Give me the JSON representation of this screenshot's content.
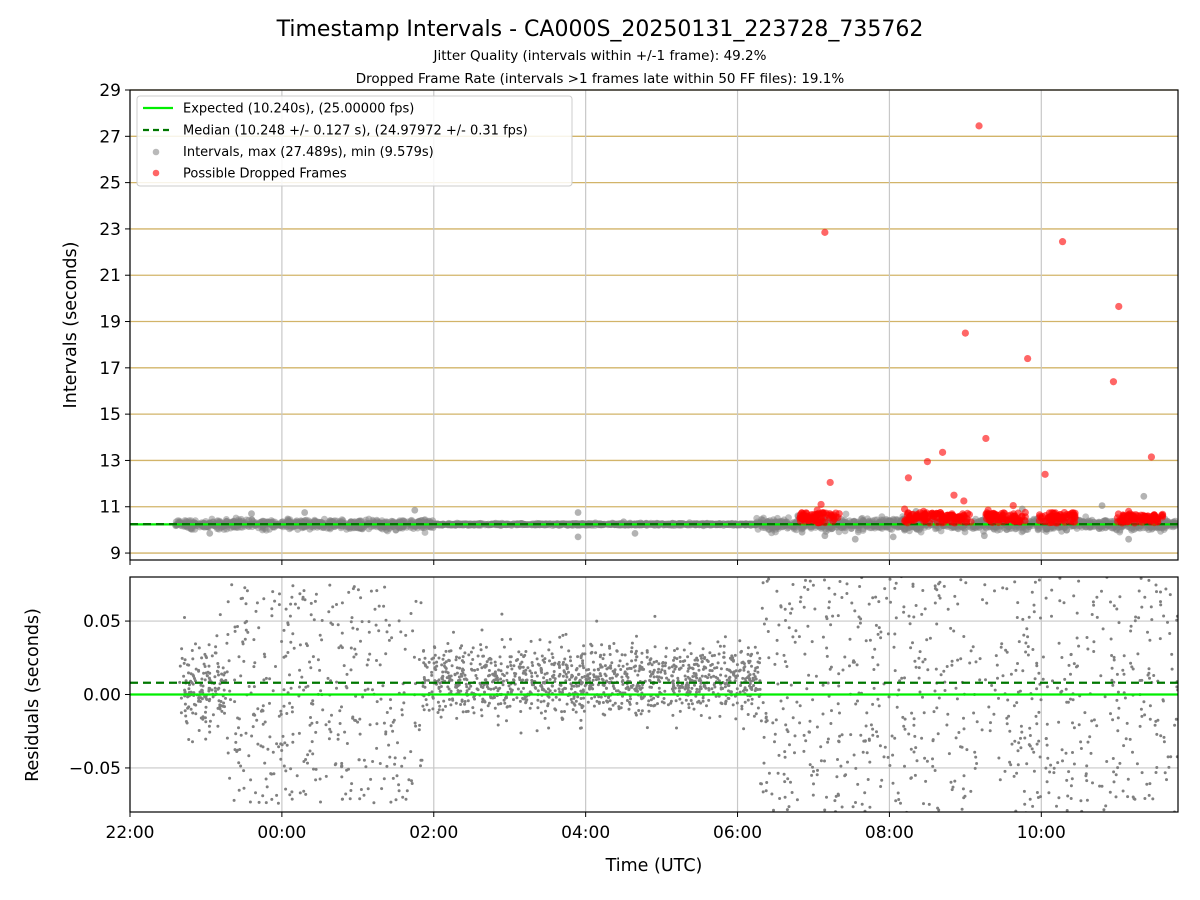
{
  "title": "Timestamp Intervals - CA000S_20250131_223728_735762",
  "subtitle_jitter": "Jitter Quality (intervals within +/-1 frame): 49.2%",
  "subtitle_dropped": "Dropped Frame Rate (intervals >1 frames late within 50 FF files): 19.1%",
  "colors": {
    "expected": "#00ee00",
    "median": "#007700",
    "intervals": "#808080",
    "dropped": "#ff0000",
    "hgrid_top": "#d2b469",
    "grid": "#c8c8c8"
  },
  "chart_data": [
    {
      "type": "scatter",
      "panel": "top",
      "ylabel": "Intervals (seconds)",
      "xlabel": "",
      "x_unit": "hours UTC",
      "xlim": [
        22.0,
        35.8
      ],
      "ylim": [
        8.7,
        29.0
      ],
      "yticks": [
        "9",
        "11",
        "13",
        "15",
        "17",
        "19",
        "21",
        "23",
        "25",
        "27",
        "29"
      ],
      "grid": true,
      "legend_position": "upper-left",
      "legend": [
        {
          "label": "Expected (10.240s), (25.00000 fps)",
          "style": "solid-line"
        },
        {
          "label": "Median (10.248 +/- 0.127 s), (24.97972 +/- 0.31 fps)",
          "style": "dashed-line"
        },
        {
          "label": "Intervals, max (27.489s), min (9.579s)",
          "style": "gray-dot"
        },
        {
          "label": "Possible Dropped Frames",
          "style": "red-dot"
        }
      ],
      "expected_interval": 10.24,
      "median_interval": 10.248,
      "intervals_max": 27.489,
      "intervals_min": 9.579,
      "interval_clusters": [
        {
          "x_range": [
            22.6,
            26.0
          ],
          "center": 10.24,
          "spread": 0.22
        },
        {
          "x_range": [
            26.0,
            30.25
          ],
          "center": 10.24,
          "spread": 0.05
        },
        {
          "x_range": [
            30.25,
            35.8
          ],
          "center": 10.24,
          "spread": 0.28
        }
      ],
      "interval_outliers": [
        [
          23.05,
          9.85
        ],
        [
          23.6,
          10.7
        ],
        [
          24.3,
          10.75
        ],
        [
          25.75,
          10.85
        ],
        [
          27.9,
          10.75
        ],
        [
          27.9,
          9.7
        ],
        [
          28.5,
          10.35
        ],
        [
          28.65,
          9.85
        ],
        [
          30.85,
          9.9
        ],
        [
          31.15,
          9.75
        ],
        [
          31.55,
          9.6
        ],
        [
          32.05,
          9.7
        ],
        [
          32.35,
          10.8
        ],
        [
          33.75,
          10.9
        ],
        [
          34.8,
          11.05
        ],
        [
          35.35,
          11.45
        ],
        [
          35.15,
          9.6
        ],
        [
          33.25,
          9.75
        ]
      ],
      "dropped_frames_main": [
        {
          "x_range": [
            30.8,
            31.35
          ],
          "y_range": [
            10.3,
            10.75
          ]
        },
        {
          "x_range": [
            32.2,
            33.1
          ],
          "y_range": [
            10.3,
            10.75
          ]
        },
        {
          "x_range": [
            33.25,
            33.8
          ],
          "y_range": [
            10.3,
            10.75
          ]
        },
        {
          "x_range": [
            33.95,
            34.45
          ],
          "y_range": [
            10.3,
            10.75
          ]
        },
        {
          "x_range": [
            35.0,
            35.6
          ],
          "y_range": [
            10.3,
            10.7
          ]
        }
      ],
      "dropped_frames_outliers": [
        [
          31.15,
          22.85
        ],
        [
          31.22,
          12.05
        ],
        [
          31.1,
          11.1
        ],
        [
          32.25,
          12.25
        ],
        [
          32.5,
          12.95
        ],
        [
          32.7,
          13.35
        ],
        [
          32.85,
          11.5
        ],
        [
          32.98,
          11.25
        ],
        [
          33.0,
          18.5
        ],
        [
          33.18,
          27.45
        ],
        [
          33.27,
          13.95
        ],
        [
          33.63,
          11.05
        ],
        [
          33.82,
          17.4
        ],
        [
          34.05,
          12.4
        ],
        [
          34.28,
          22.45
        ],
        [
          34.95,
          16.4
        ],
        [
          35.02,
          19.65
        ],
        [
          35.45,
          13.15
        ],
        [
          32.2,
          10.9
        ],
        [
          33.3,
          10.85
        ],
        [
          35.15,
          10.8
        ],
        [
          31.05,
          10.85
        ],
        [
          32.45,
          10.8
        ]
      ]
    },
    {
      "type": "scatter",
      "panel": "bottom",
      "ylabel": "Residuals (seconds)",
      "xlabel": "Time (UTC)",
      "x_unit": "hours UTC",
      "xlim": [
        22.0,
        35.8
      ],
      "ylim": [
        -0.08,
        0.08
      ],
      "yticks": [
        "0.05",
        "0.00",
        "−0.05"
      ],
      "xticks": [
        "22:00",
        "00:00",
        "02:00",
        "04:00",
        "06:00",
        "08:00",
        "10:00"
      ],
      "grid": true,
      "expected_residual": 0.0,
      "median_residual": 0.008,
      "residual_clusters": [
        {
          "x_range": [
            22.65,
            23.25
          ],
          "center": 0.005,
          "spread": 0.02
        },
        {
          "x_range": [
            23.25,
            25.85
          ],
          "center": 0.0,
          "spread": 0.075
        },
        {
          "x_range": [
            25.85,
            30.3
          ],
          "center": 0.01,
          "spread": 0.016
        },
        {
          "x_range": [
            30.3,
            35.8
          ],
          "center": 0.0,
          "spread": 0.09
        }
      ]
    }
  ]
}
